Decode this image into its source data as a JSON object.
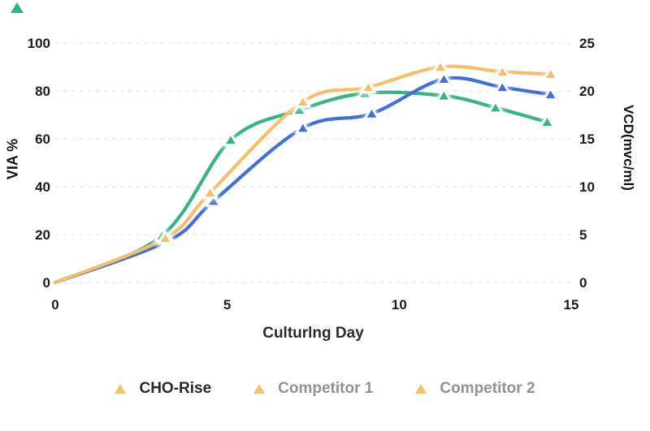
{
  "page": {
    "background": "#ffffff"
  },
  "decor": {
    "corner_triangle_color": "#2fb480"
  },
  "chart_data": {
    "type": "line",
    "xlabel": "Culturlng Day",
    "ylabel_left": "VIA %",
    "ylabel_right": "VCD(mvc/ml)",
    "x_range": [
      0,
      15
    ],
    "x_ticks": [
      "0",
      "5",
      "10",
      "15"
    ],
    "y_left_range": [
      0,
      100
    ],
    "y_left_ticks": [
      "100",
      "80",
      "60",
      "40",
      "20",
      "0"
    ],
    "y_right_range": [
      0,
      25
    ],
    "y_right_ticks": [
      "25",
      "20",
      "15",
      "10",
      "5",
      "0"
    ],
    "grid": "horizontal-dashed",
    "legend_position": "bottom",
    "values_unit": "VIA % (left axis); right axis VCD = VIA/4",
    "series": [
      {
        "name": "Competitor 2",
        "color": "#3AB286",
        "marker": "triangle",
        "points": [
          [
            0,
            0
          ],
          [
            3.1,
            19.5
          ],
          [
            5.1,
            59.5
          ],
          [
            7.1,
            72
          ],
          [
            9,
            79
          ],
          [
            11.3,
            78
          ],
          [
            12.8,
            73
          ],
          [
            14.3,
            67
          ]
        ]
      },
      {
        "name": "Competitor 1",
        "color": "#4470CF",
        "marker": "triangle",
        "points": [
          [
            0,
            0
          ],
          [
            3.3,
            17.5
          ],
          [
            4.6,
            34
          ],
          [
            7.2,
            64.5
          ],
          [
            9.2,
            70.5
          ],
          [
            11.3,
            85
          ],
          [
            13,
            81.5
          ],
          [
            14.4,
            78.5
          ]
        ]
      },
      {
        "name": "CHO-Rise",
        "color": "#F3BE6D",
        "marker": "triangle",
        "points": [
          [
            0,
            0
          ],
          [
            3.2,
            18.5
          ],
          [
            4.5,
            37.5
          ],
          [
            7.2,
            75.5
          ],
          [
            9.1,
            81.5
          ],
          [
            11.2,
            90
          ],
          [
            13,
            88
          ],
          [
            14.4,
            87
          ]
        ]
      }
    ]
  },
  "legend": {
    "items": [
      {
        "label": "CHO-Rise",
        "marker_color": "#F3C276",
        "emphasis": true
      },
      {
        "label": "Competitor 1",
        "marker_color": "#F3C276",
        "emphasis": false
      },
      {
        "label": "Competitor 2",
        "marker_color": "#F3C276",
        "emphasis": false
      }
    ]
  }
}
